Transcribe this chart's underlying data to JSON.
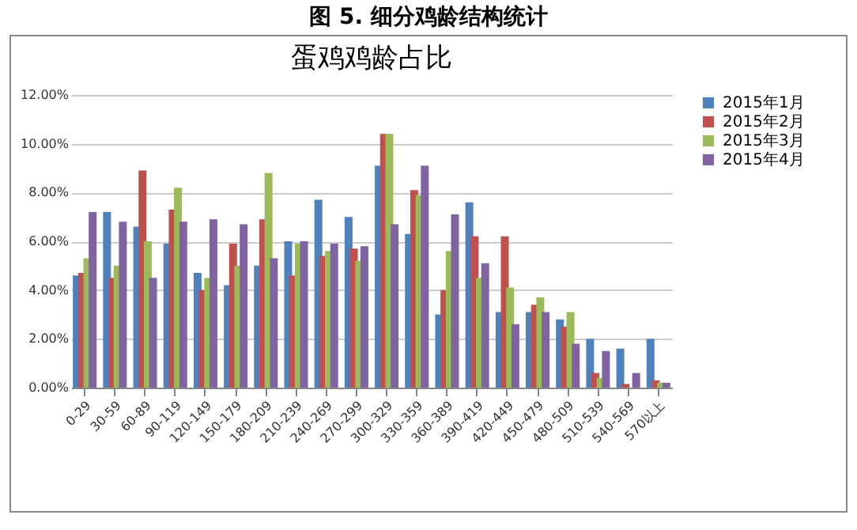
{
  "chart_data": {
    "type": "bar",
    "title": "图 5. 细分鸡龄结构统计",
    "subtitle": "蛋鸡鸡龄占比",
    "categories": [
      "0-29",
      "30-59",
      "60-89",
      "90-119",
      "120-149",
      "150-179",
      "180-209",
      "210-239",
      "240-269",
      "270-299",
      "300-329",
      "330-359",
      "360-389",
      "390-419",
      "420-449",
      "450-479",
      "480-509",
      "510-539",
      "540-569",
      "570以上"
    ],
    "series": [
      {
        "name": "2015年1月",
        "color": "#4f81bd",
        "values": [
          4.6,
          7.2,
          6.6,
          5.9,
          4.7,
          4.2,
          5.0,
          6.0,
          7.7,
          7.0,
          9.1,
          6.3,
          3.0,
          7.6,
          3.1,
          3.1,
          2.8,
          2.0,
          1.6,
          2.0
        ]
      },
      {
        "name": "2015年2月",
        "color": "#c0504d",
        "values": [
          4.7,
          4.5,
          8.9,
          7.3,
          4.0,
          5.9,
          6.9,
          4.6,
          5.4,
          5.7,
          10.4,
          8.1,
          4.0,
          6.2,
          6.2,
          3.4,
          2.5,
          0.6,
          0.15,
          0.3
        ]
      },
      {
        "name": "2015年3月",
        "color": "#9bbb59",
        "values": [
          5.3,
          5.0,
          6.0,
          8.2,
          4.5,
          5.0,
          8.8,
          5.9,
          5.6,
          5.2,
          10.4,
          7.9,
          5.6,
          4.5,
          4.1,
          3.7,
          3.1,
          0.4,
          null,
          0.2
        ]
      },
      {
        "name": "2015年4月",
        "color": "#8064a2",
        "values": [
          7.2,
          6.8,
          4.5,
          6.8,
          6.9,
          6.7,
          5.3,
          6.0,
          5.9,
          5.8,
          6.7,
          9.1,
          7.1,
          5.1,
          2.6,
          3.1,
          1.8,
          1.5,
          0.6,
          0.2
        ]
      }
    ],
    "ylim": [
      0,
      12
    ],
    "yticks": [
      {
        "value": 0,
        "label": "0.00%"
      },
      {
        "value": 2,
        "label": "2.00%"
      },
      {
        "value": 4,
        "label": "4.00%"
      },
      {
        "value": 6,
        "label": "6.00%"
      },
      {
        "value": 8,
        "label": "8.00%"
      },
      {
        "value": 10,
        "label": "10.00%"
      },
      {
        "value": 12,
        "label": "12.00%"
      }
    ],
    "grid": "y",
    "legend": "right"
  }
}
